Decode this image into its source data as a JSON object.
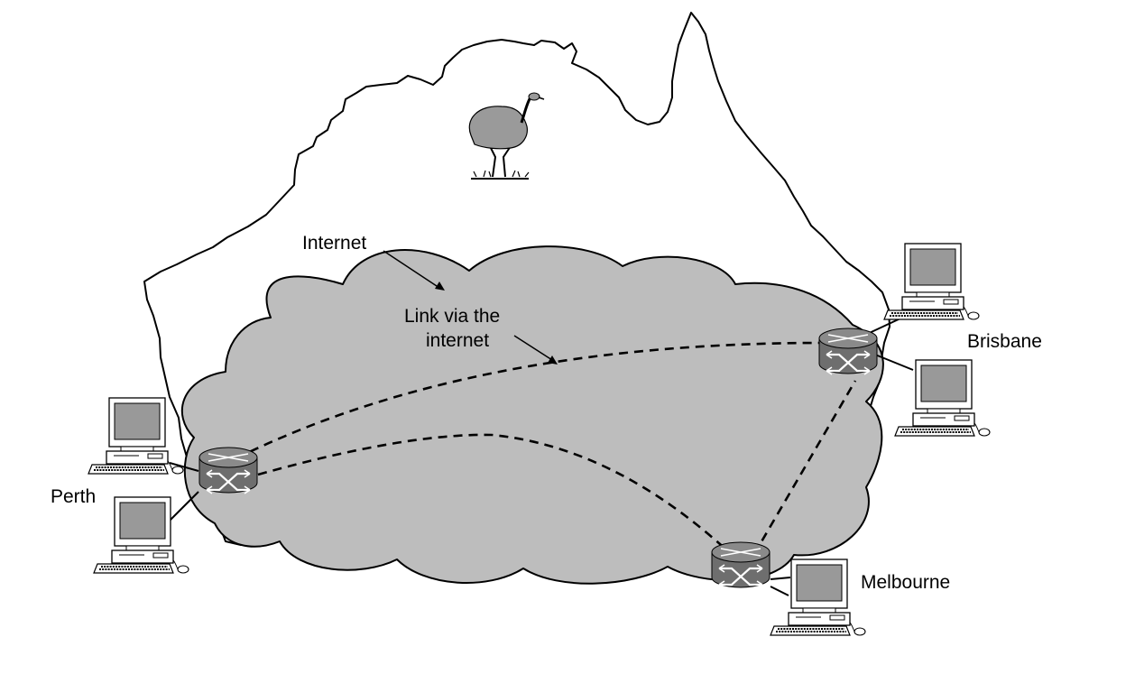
{
  "labels": {
    "internet": "Internet",
    "link_line1": "Link via the",
    "link_line2": "internet",
    "perth": "Perth",
    "brisbane": "Brisbane",
    "melbourne": "Melbourne"
  },
  "colors": {
    "cloud_fill": "#bdbdbd",
    "router_fill": "#7a7a7a",
    "monitor_screen": "#9a9a9a",
    "outline": "#000000",
    "background": "#ffffff"
  },
  "icons": {
    "router": "router-icon",
    "computer": "computer-icon",
    "emu": "emu-icon"
  }
}
